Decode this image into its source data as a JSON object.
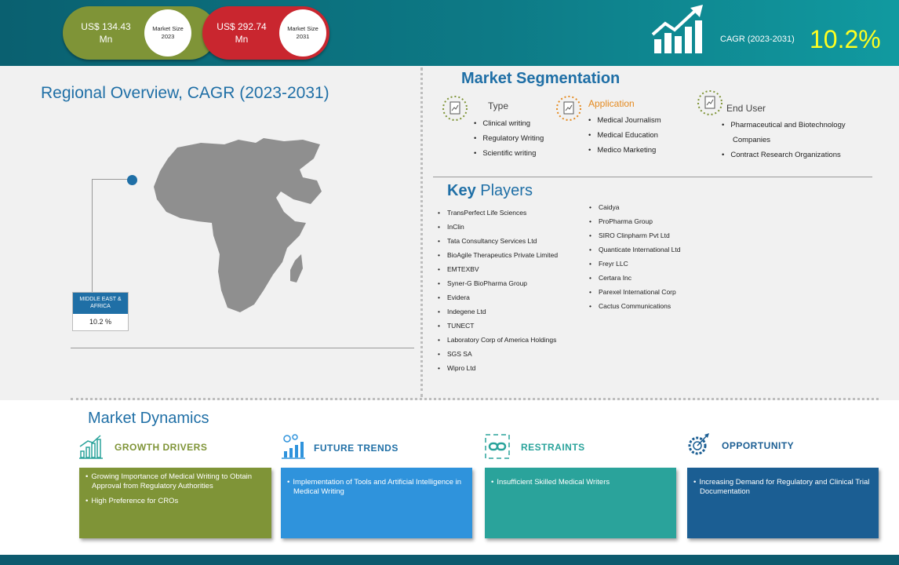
{
  "header": {
    "size_2023": {
      "value": "US$ 134.43",
      "unit": "Mn",
      "label_line1": "Market Size",
      "label_line2": "2023"
    },
    "size_2031": {
      "value": "US$ 292.74",
      "unit": "Mn",
      "label_line1": "Market Size",
      "label_line2": "2031"
    },
    "cagr_label": "CAGR (2023-2031)",
    "cagr_value": "10.2%",
    "icon": "growth-chart-icon",
    "colors": {
      "bar": "#0d7a86",
      "green": "#7f9437",
      "red": "#c9262f",
      "cagr": "#ffff20"
    }
  },
  "regional": {
    "title": "Regional Overview, CAGR (2023-2031)",
    "region_name": "MIDDLE EAST & AFRICA",
    "region_value": "10.2 %"
  },
  "segmentation": {
    "title": "Market Segmentation",
    "type": {
      "heading": "Type",
      "icon": "document-chart-icon",
      "items": [
        "Clinical writing",
        "Regulatory Writing",
        "Scientific writing"
      ]
    },
    "application": {
      "heading": "Application",
      "icon": "document-chart-icon",
      "items": [
        "Medical Journalism",
        "Medical Education",
        "Medico Marketing"
      ]
    },
    "end_user": {
      "heading": "End User",
      "icon": "document-chart-icon",
      "items": [
        "Pharmaceutical and Biotechnology Companies",
        "Contract Research Organizations"
      ]
    }
  },
  "key_players": {
    "title_bold": "Key",
    "title_rest": " Players",
    "column1": [
      "TransPerfect Life Sciences",
      "InClin",
      "Tata Consultancy Services Ltd",
      "BioAgile Therapeutics Private Limited",
      "EMTEXBV",
      "Syner-G BioPharma Group",
      "Evidera",
      "Indegene Ltd",
      "TUNECT",
      "Laboratory Corp of America Holdings",
      "SGS SA",
      "Wipro Ltd"
    ],
    "column2": [
      "Caidya",
      "ProPharma Group",
      "SIRO Clinpharm Pvt Ltd",
      "Quanticate International Ltd",
      "Freyr LLC",
      "Certara Inc",
      "Parexel International Corp",
      "Cactus Communications"
    ]
  },
  "dynamics": {
    "title": "Market Dynamics",
    "growth_drivers": {
      "heading": "GROWTH DRIVERS",
      "icon": "bar-growth-icon",
      "items": [
        "Growing Importance of Medical Writing to Obtain Approval from Regulatory Authorities",
        "High Preference for CROs"
      ]
    },
    "future_trends": {
      "heading": "FUTURE TRENDS",
      "icon": "trend-chart-icon",
      "items": [
        "Implementation of Tools and Artificial Intelligence in Medical Writing"
      ]
    },
    "restraints": {
      "heading": "RESTRAINTS",
      "icon": "broken-chain-icon",
      "items": [
        "Insufficient Skilled Medical Writers"
      ]
    },
    "opportunity": {
      "heading": "OPPORTUNITY",
      "icon": "gear-target-icon",
      "items": [
        "Increasing Demand for Regulatory and Clinical Trial Documentation"
      ]
    }
  }
}
